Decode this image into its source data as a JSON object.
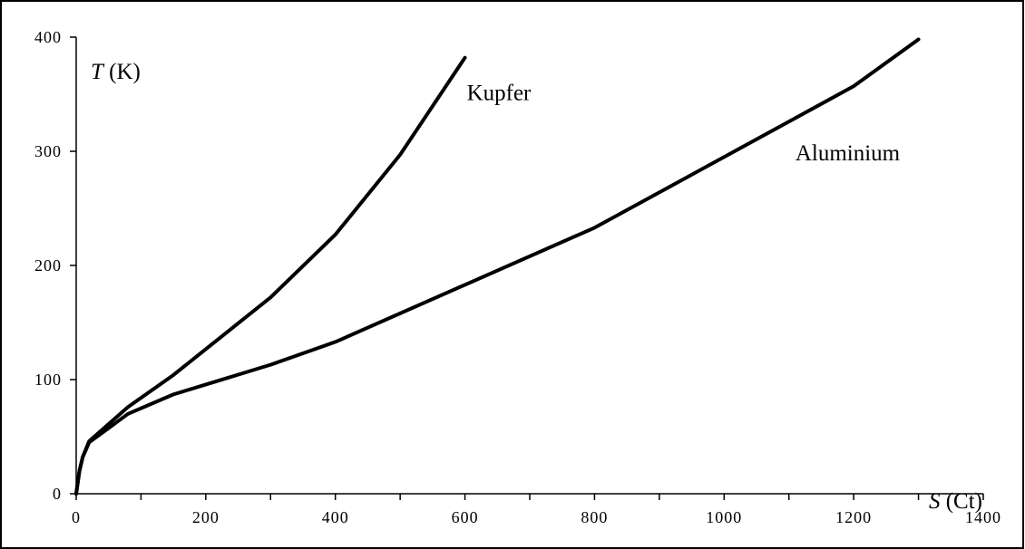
{
  "chart_data": {
    "type": "line",
    "title": "",
    "xlabel": {
      "var": "S",
      "unit": " (Ct)"
    },
    "ylabel": {
      "var": "T",
      "unit": " (K)"
    },
    "xlim": [
      0,
      1400
    ],
    "ylim": [
      0,
      400
    ],
    "x_ticks": [
      0,
      200,
      400,
      600,
      800,
      1000,
      1200,
      1400
    ],
    "x_minor_step": 100,
    "y_ticks": [
      0,
      100,
      200,
      300,
      400
    ],
    "grid": false,
    "legend": "none",
    "series": [
      {
        "name": "Kupfer",
        "x": [
          0,
          5,
          10,
          20,
          80,
          150,
          300,
          400,
          500,
          600
        ],
        "y": [
          0,
          20,
          32,
          46,
          76,
          104,
          172,
          227,
          297,
          382
        ]
      },
      {
        "name": "Aluminium",
        "x": [
          0,
          5,
          10,
          20,
          80,
          150,
          300,
          400,
          800,
          1200,
          1300
        ],
        "y": [
          0,
          20,
          32,
          45,
          70,
          87,
          113,
          133,
          233,
          357,
          398
        ]
      }
    ]
  }
}
